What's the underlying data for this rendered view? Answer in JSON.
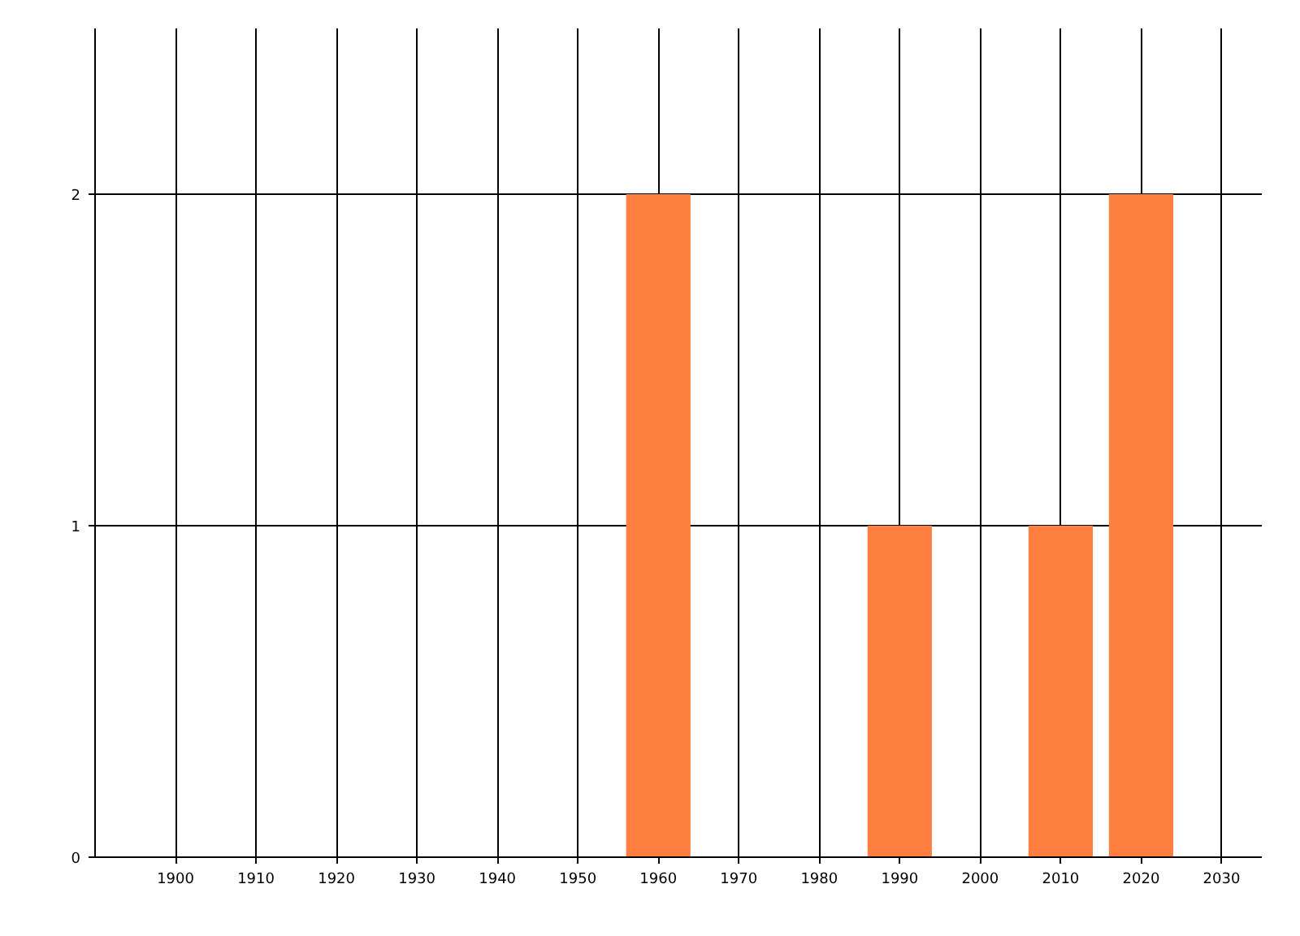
{
  "chart_data": {
    "type": "bar",
    "x": [
      1960,
      1990,
      2010,
      2020
    ],
    "values": [
      2,
      1,
      1,
      2
    ],
    "color": "#ff7f40",
    "xlim": [
      1890,
      2035
    ],
    "xticks": [
      1900,
      1910,
      1920,
      1930,
      1940,
      1950,
      1960,
      1970,
      1980,
      1990,
      2000,
      2010,
      2020,
      2030
    ],
    "ylim": [
      0,
      2.5
    ],
    "yticks": [
      0,
      1,
      2
    ],
    "grid": true
  }
}
